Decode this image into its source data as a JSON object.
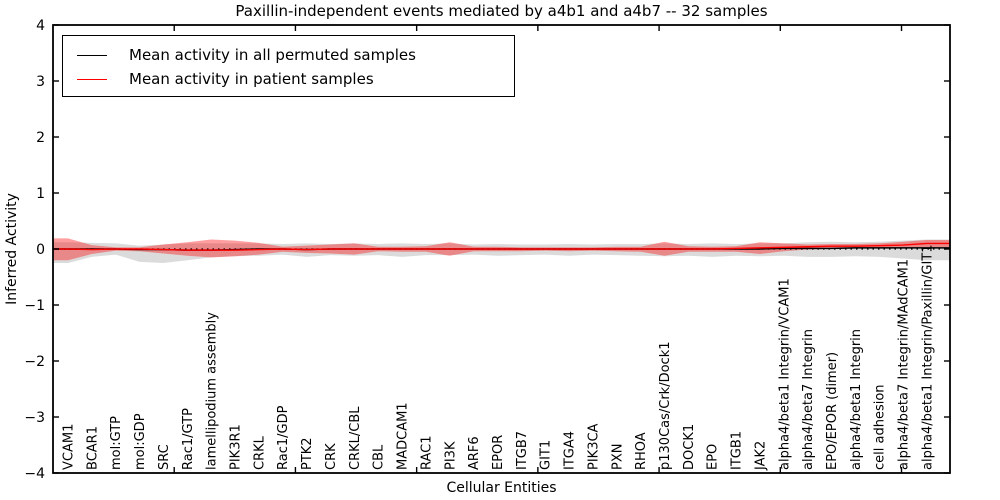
{
  "chart_data": {
    "type": "line",
    "title": "Paxillin-independent events mediated by a4b1 and a4b7 -- 32 samples",
    "xlabel": "Cellular Entities",
    "ylabel": "Inferred Activity",
    "ylim": [
      -4,
      4
    ],
    "yticks": [
      {
        "value": 4,
        "label": "4"
      },
      {
        "value": 3,
        "label": "3"
      },
      {
        "value": 2,
        "label": "2"
      },
      {
        "value": 1,
        "label": "1"
      },
      {
        "value": 0,
        "label": "0"
      },
      {
        "value": -1,
        "label": "−1"
      },
      {
        "value": -2,
        "label": "−2"
      },
      {
        "value": -3,
        "label": "−3"
      },
      {
        "value": -4,
        "label": "−4"
      }
    ],
    "grid": false,
    "zero_line": {
      "shown": true,
      "style": "dotted",
      "color": "#000000",
      "y": 0
    },
    "legend": {
      "position": "upper-left",
      "entries": [
        {
          "label": "Mean activity in all permuted samples",
          "color": "#000000"
        },
        {
          "label": "Mean activity in patient samples",
          "color": "#ff0000"
        }
      ]
    },
    "categories": [
      "VCAM1",
      "BCAR1",
      "mol:GTP",
      "mol:GDP",
      "SRC",
      "Rac1/GTP",
      "lamellipodium assembly",
      "PIK3R1",
      "CRKL",
      "Rac1/GDP",
      "PTK2",
      "CRK",
      "CRKL/CBL",
      "CBL",
      "MADCAM1",
      "RAC1",
      "PI3K",
      "ARF6",
      "EPOR",
      "ITGB7",
      "GIT1",
      "ITGA4",
      "PIK3CA",
      "PXN",
      "RHOA",
      "p130Cas/Crk/Dock1",
      "DOCK1",
      "EPO",
      "ITGB1",
      "JAK2",
      "alpha4/beta1 Integrin/VCAM1",
      "alpha4/beta7 Integrin",
      "EPO/EPOR (dimer)",
      "alpha4/beta1 Integrin",
      "cell adhesion",
      "alpha4/beta7 Integrin/MAdCAM1",
      "alpha4/beta1 Integrin/Paxillin/GIT1"
    ],
    "series": [
      {
        "name": "Mean activity in all permuted samples",
        "color": "#000000",
        "values": [
          0,
          0,
          0,
          -0.01,
          -0.01,
          -0.02,
          -0.02,
          -0.01,
          0,
          0,
          -0.01,
          0,
          0,
          0,
          0,
          0,
          0,
          0,
          0,
          0,
          0,
          0,
          0,
          0,
          0,
          0,
          0,
          0,
          0,
          0,
          0.01,
          0.01,
          0.01,
          0.02,
          0.02,
          0.02,
          0.02
        ]
      },
      {
        "name": "Mean activity in patient samples",
        "color": "#ff0000",
        "values": [
          0,
          -0.01,
          0,
          0,
          -0.01,
          -0.02,
          -0.02,
          -0.02,
          -0.01,
          0,
          -0.01,
          0,
          0,
          0,
          0,
          0,
          0,
          0,
          0,
          0,
          0,
          0,
          0,
          0,
          0,
          0,
          0,
          0,
          0.01,
          0.02,
          0.03,
          0.04,
          0.05,
          0.05,
          0.06,
          0.07,
          0.1
        ]
      }
    ],
    "bands": [
      {
        "name": "permuted-range",
        "color": "#999999",
        "opacity": 0.35,
        "hi": [
          0.12,
          0.11,
          0.1,
          0.06,
          0.08,
          0.1,
          0.1,
          0.1,
          0.1,
          0.09,
          0.1,
          0.09,
          0.1,
          0.09,
          0.1,
          0.09,
          0.1,
          0.08,
          0.09,
          0.08,
          0.08,
          0.09,
          0.08,
          0.09,
          0.09,
          0.1,
          0.09,
          0.1,
          0.09,
          0.1,
          0.1,
          0.12,
          0.13,
          0.12,
          0.13,
          0.15,
          0.17
        ],
        "lo": [
          -0.25,
          -0.14,
          -0.1,
          -0.23,
          -0.25,
          -0.2,
          -0.15,
          -0.13,
          -0.12,
          -0.1,
          -0.14,
          -0.11,
          -0.12,
          -0.11,
          -0.14,
          -0.11,
          -0.11,
          -0.1,
          -0.12,
          -0.11,
          -0.1,
          -0.12,
          -0.1,
          -0.11,
          -0.12,
          -0.13,
          -0.12,
          -0.14,
          -0.12,
          -0.13,
          -0.12,
          -0.14,
          -0.14,
          -0.13,
          -0.14,
          -0.17,
          -0.2
        ]
      },
      {
        "name": "patient-range",
        "color": "#ff0000",
        "opacity": 0.38,
        "hi": [
          0.19,
          0.07,
          0.03,
          0.03,
          0.08,
          0.12,
          0.17,
          0.15,
          0.11,
          0.04,
          0.06,
          0.08,
          0.1,
          0.04,
          0.04,
          0.05,
          0.12,
          0.04,
          0.04,
          0.03,
          0.03,
          0.03,
          0.03,
          0.04,
          0.04,
          0.13,
          0.05,
          0.04,
          0.05,
          0.12,
          0.1,
          0.08,
          0.09,
          0.09,
          0.1,
          0.13,
          0.16
        ],
        "lo": [
          -0.2,
          -0.09,
          -0.03,
          -0.04,
          -0.08,
          -0.12,
          -0.15,
          -0.13,
          -0.1,
          -0.05,
          -0.07,
          -0.08,
          -0.1,
          -0.04,
          -0.05,
          -0.05,
          -0.12,
          -0.04,
          -0.04,
          -0.04,
          -0.03,
          -0.04,
          -0.03,
          -0.04,
          -0.05,
          -0.12,
          -0.05,
          -0.05,
          -0.05,
          -0.09,
          -0.04,
          -0.01,
          0.0,
          0.01,
          0.01,
          0.02,
          0.03
        ]
      }
    ]
  }
}
